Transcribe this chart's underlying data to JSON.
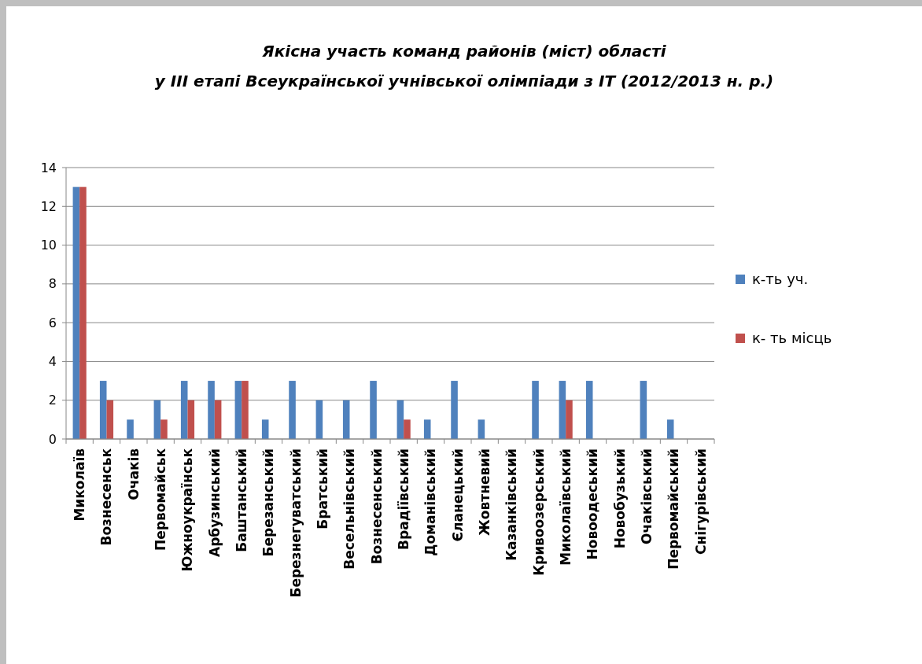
{
  "chart_data": {
    "type": "bar",
    "title": "Якісна участь команд районів (міст) області\nу ІІІ етапі Всеукраїнської учнівської олімпіади з ІТ (2012/2013 н. р.)",
    "categories": [
      "Миколаїв",
      "Вознесенськ",
      "Очаків",
      "Первомайськ",
      "Южноукраїнськ",
      "Арбузинський",
      "Баштанський",
      "Березанський",
      "Березнегуватський",
      "Братський",
      "Весельнівський",
      "Вознесенський",
      "Врадіївський",
      "Доманівський",
      "Єланецький",
      "Жовтневий",
      "Казанківський",
      "Кривоозерський",
      "Миколаївський",
      "Новоодеський",
      "Новобузький",
      "Очаківський",
      "Первомайський",
      "Снігурівський"
    ],
    "series": [
      {
        "name": "к-ть уч.",
        "color": "#4f81bd",
        "values": [
          13,
          3,
          1,
          2,
          3,
          3,
          3,
          1,
          3,
          2,
          2,
          3,
          2,
          1,
          3,
          1,
          0,
          3,
          3,
          3,
          0,
          3,
          1,
          0
        ]
      },
      {
        "name": "к- ть місць",
        "color": "#c0504d",
        "values": [
          13,
          2,
          0,
          1,
          2,
          2,
          3,
          0,
          0,
          0,
          0,
          0,
          1,
          0,
          0,
          0,
          0,
          0,
          2,
          0,
          0,
          0,
          0,
          0
        ]
      }
    ],
    "ylim": [
      0,
      14
    ],
    "yticks": [
      0,
      2,
      4,
      6,
      8,
      10,
      12,
      14
    ],
    "grid": "y",
    "legend": "right"
  }
}
